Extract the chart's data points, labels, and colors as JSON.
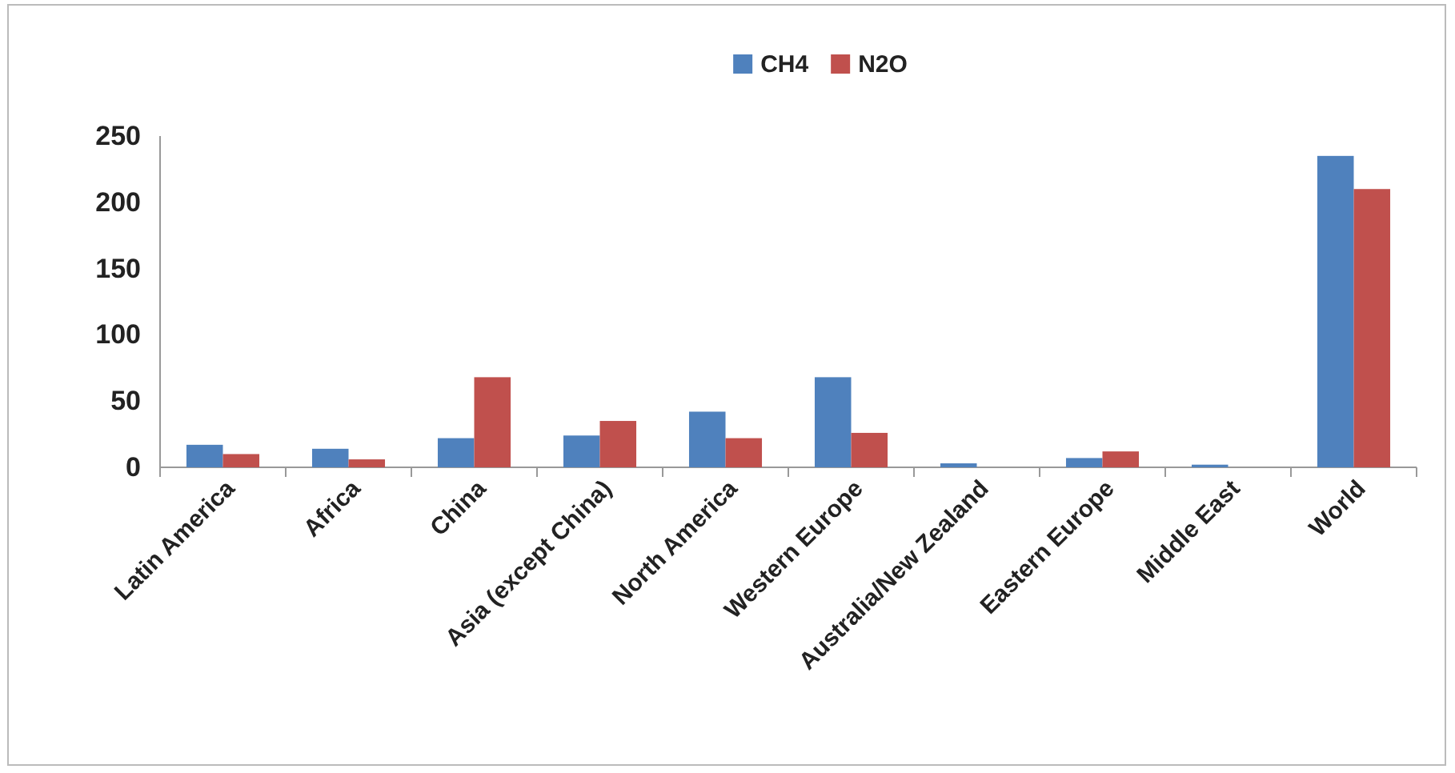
{
  "chart_data": {
    "type": "bar",
    "categories": [
      "Latin America",
      "Africa",
      "China",
      "Asia (except China)",
      "North America",
      "Western Europe",
      "Australia/New Zealand",
      "Eastern Europe",
      "Middle East",
      "World"
    ],
    "series": [
      {
        "name": "CH4",
        "color": "#4f81bd",
        "values": [
          17,
          14,
          22,
          24,
          42,
          68,
          3,
          7,
          2,
          235
        ]
      },
      {
        "name": "N2O",
        "color": "#c0504d",
        "values": [
          10,
          6,
          68,
          35,
          22,
          26,
          0,
          12,
          0,
          210
        ]
      }
    ],
    "ylim": [
      0,
      250
    ],
    "yticks": [
      0,
      50,
      100,
      150,
      200,
      250
    ],
    "legend": "top",
    "grid": false
  }
}
